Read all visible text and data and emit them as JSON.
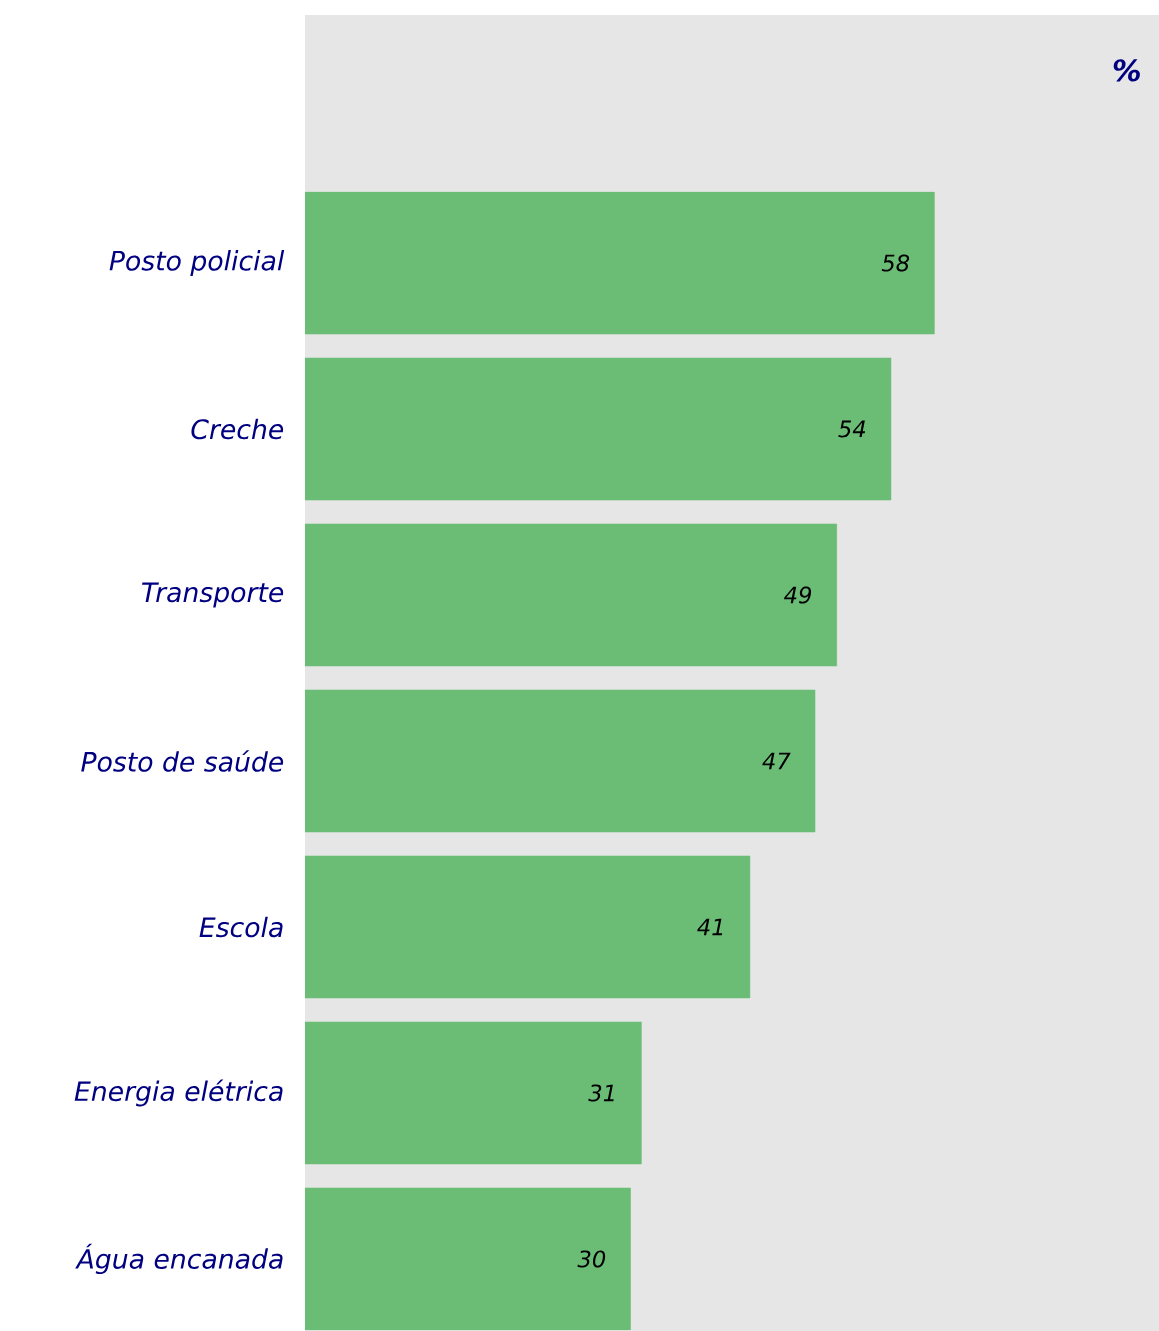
{
  "chart_data": {
    "type": "bar",
    "orientation": "horizontal",
    "title": "%",
    "categories": [
      "Posto policial",
      "Creche",
      "Transporte",
      "Posto de saúde",
      "Escola",
      "Energia elétrica",
      "Água encanada"
    ],
    "values": [
      58,
      54,
      49,
      47,
      41,
      31,
      30
    ],
    "color": "#6bbd76",
    "data_labels": true,
    "xlim": [
      0,
      78.7
    ]
  }
}
